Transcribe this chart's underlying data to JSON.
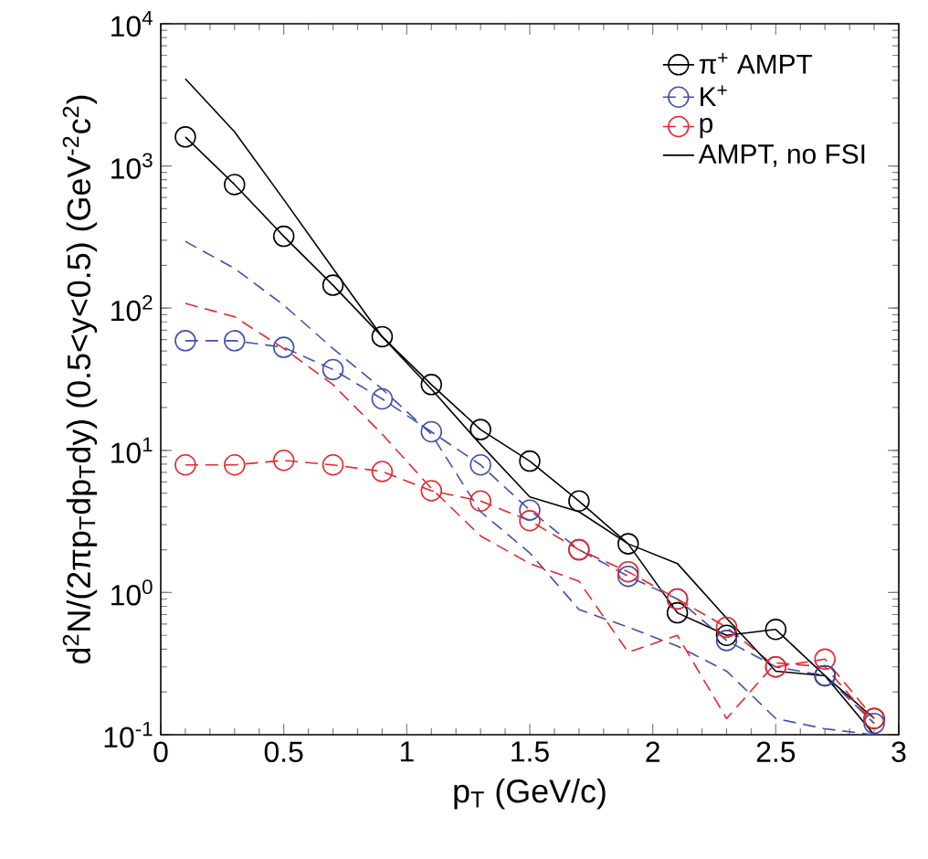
{
  "chart_data": {
    "type": "line",
    "xlabel": "p$_{T}$ (GeV/c)",
    "ylabel": "d$^{2}$N/(2πp$_{T}$dp$_{T}$dy) (0.5<y<0.5) (GeV$^{-2}$c$^{2}$)",
    "x": [
      0.1,
      0.3,
      0.5,
      0.7,
      0.9,
      1.1,
      1.3,
      1.5,
      1.7,
      1.9,
      2.1,
      2.3,
      2.5,
      2.7,
      2.9
    ],
    "log": "y",
    "xlim": [
      0,
      3
    ],
    "ylim": [
      0.1,
      10000
    ],
    "xticks": [
      0,
      0.5,
      1,
      1.5,
      2,
      2.5,
      3
    ],
    "yticks": [
      {
        "value": 0.1,
        "label": "10$^{-1}$"
      },
      {
        "value": 1,
        "label": "10$^{0}$"
      },
      {
        "value": 10,
        "label": "10$^{1}$"
      },
      {
        "value": 100,
        "label": "10$^{2}$"
      },
      {
        "value": 1000,
        "label": "10$^{3}$"
      },
      {
        "value": 10000,
        "label": "10$^{4}$"
      }
    ],
    "grid": false,
    "legend": "top right",
    "series": [
      {
        "name": "π$^{+}$ AMPT",
        "color": "#000000",
        "marker": "circle",
        "line_style": "solid",
        "values": [
          1600,
          740,
          320,
          145,
          63,
          29,
          14,
          8.4,
          4.4,
          2.2,
          0.72,
          0.5,
          0.55,
          0.26,
          0.13
        ]
      },
      {
        "name": "K$^{+}$",
        "color": "#3f4fb0",
        "marker": "circle",
        "line_style": "dashed",
        "values": [
          59,
          59,
          53,
          37,
          23,
          13.5,
          7.9,
          3.8,
          2.0,
          1.3,
          0.9,
          0.46,
          0.3,
          0.26,
          0.12
        ]
      },
      {
        "name": "p",
        "color": "#e8262a",
        "marker": "circle",
        "line_style": "dashed",
        "values": [
          7.9,
          7.9,
          8.5,
          7.9,
          7.1,
          5.2,
          4.4,
          3.2,
          2.0,
          1.4,
          0.9,
          0.57,
          0.3,
          0.34,
          0.13
        ]
      },
      {
        "name": "AMPT, no FSI",
        "color": "#000000",
        "marker": "none",
        "line_style": "solid",
        "values": [
          4100,
          1740,
          580,
          190,
          63,
          27,
          11,
          4.7,
          3.7,
          2.2,
          1.6,
          0.66,
          0.28,
          0.26,
          0.1
        ]
      },
      {
        "color": "#3f4fb0",
        "marker": "none",
        "line_style": "dashed",
        "values": [
          295,
          190,
          105,
          52,
          27,
          13,
          3.7,
          1.9,
          0.76,
          0.57,
          0.42,
          0.28,
          0.13,
          0.11,
          0.1
        ]
      },
      {
        "color": "#e8262a",
        "marker": "none",
        "line_style": "dashed",
        "values": [
          108,
          87,
          52,
          29,
          13,
          5.4,
          2.5,
          1.6,
          1.2,
          0.38,
          0.5,
          0.13,
          0.32,
          0.3,
          0.12
        ]
      }
    ]
  }
}
